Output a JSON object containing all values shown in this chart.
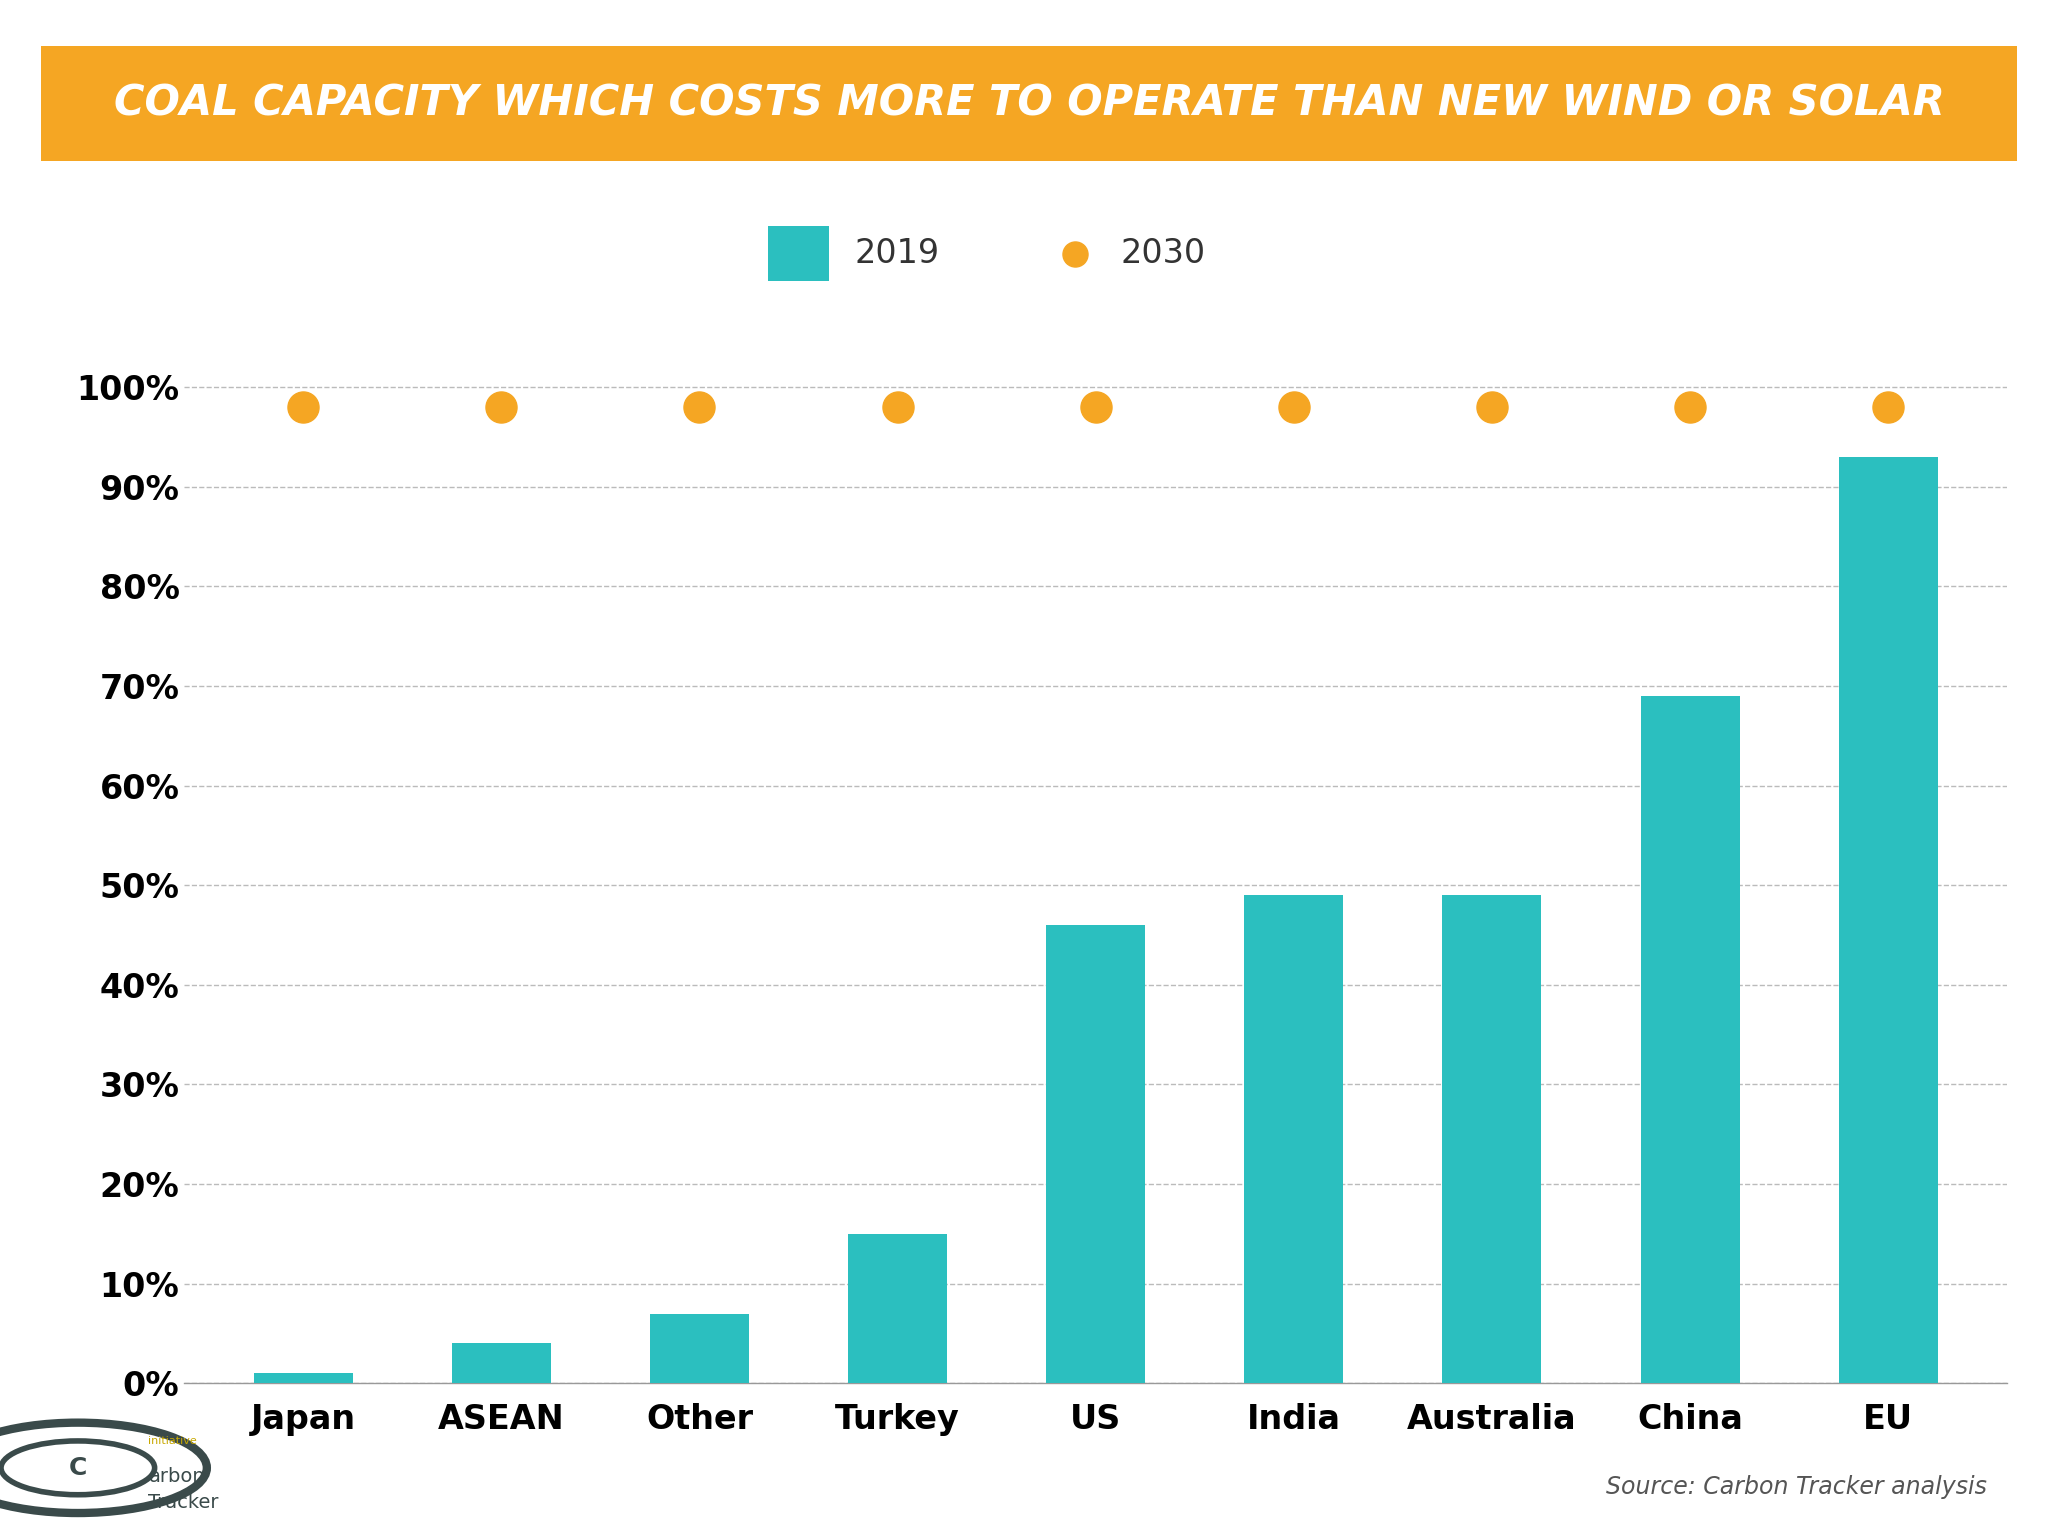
{
  "title": "COAL CAPACITY WHICH COSTS MORE TO OPERATE THAN NEW WIND OR SOLAR",
  "title_bg_color": "#F5A623",
  "title_text_color": "#FFFFFF",
  "categories": [
    "Japan",
    "ASEAN",
    "Other",
    "Turkey",
    "US",
    "India",
    "Australia",
    "China",
    "EU"
  ],
  "values_2019": [
    0.01,
    0.04,
    0.07,
    0.15,
    0.46,
    0.49,
    0.49,
    0.69,
    0.93
  ],
  "values_2030": [
    0.98,
    0.98,
    0.98,
    0.98,
    0.98,
    0.98,
    0.98,
    0.98,
    0.98
  ],
  "bar_color": "#2BBFBF",
  "dot_color": "#F5A623",
  "bg_color": "#FFFFFF",
  "grid_color": "#BBBBBB",
  "label_2019": "2019",
  "label_2030": "2030",
  "source_text": "Source: Carbon Tracker analysis",
  "ylim": [
    0,
    1.08
  ],
  "yticks": [
    0,
    0.1,
    0.2,
    0.3,
    0.4,
    0.5,
    0.6,
    0.7,
    0.8,
    0.9,
    1.0
  ],
  "ytick_labels": [
    "0%",
    "10%",
    "20%",
    "30%",
    "40%",
    "50%",
    "60%",
    "70%",
    "80%",
    "90%",
    "100%"
  ],
  "tick_label_fontsize": 24,
  "legend_fontsize": 24,
  "title_fontsize": 30,
  "dot_size": 500,
  "bar_width": 0.5
}
